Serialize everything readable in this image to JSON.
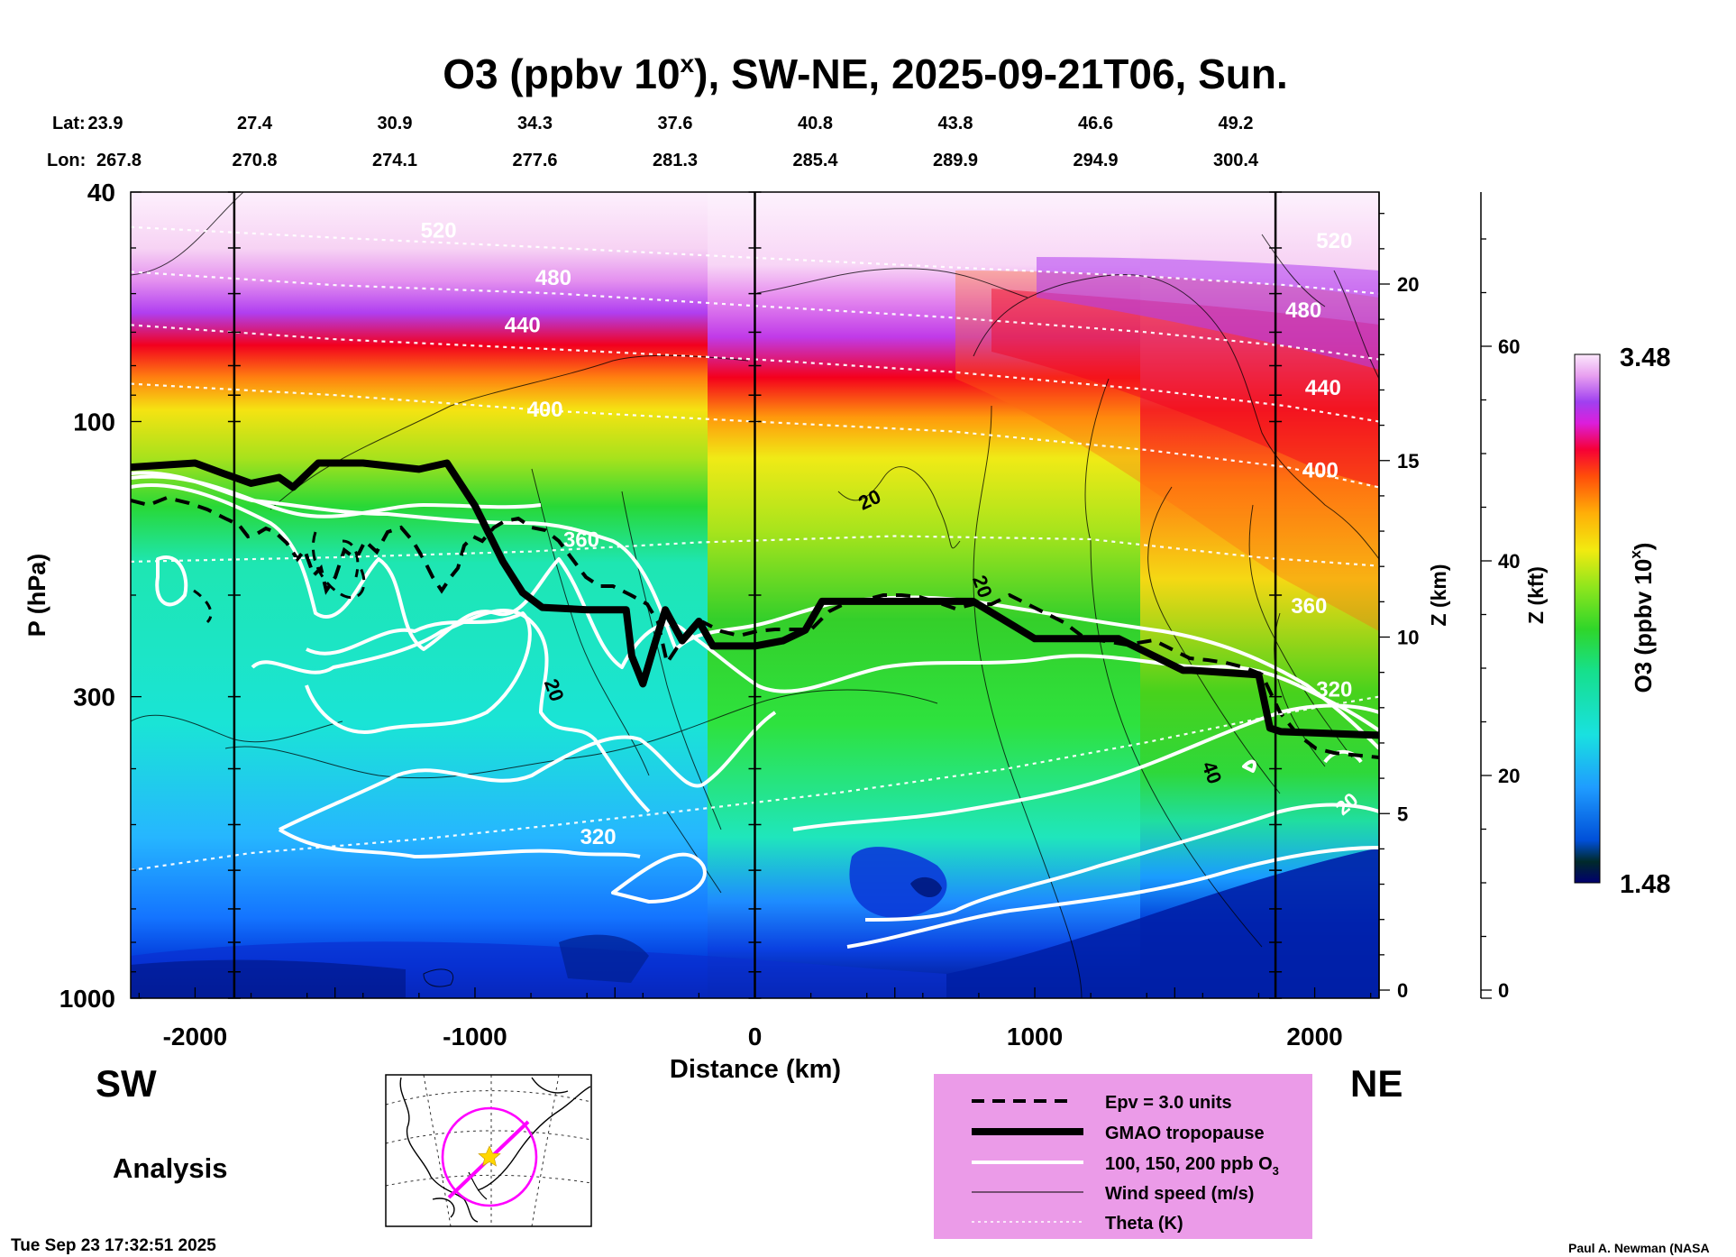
{
  "chart_data": {
    "type": "heatmap",
    "title": "O3 (ppbv 10",
    "title_sup": "x",
    "title_suffix": "), SW-NE, 2025-09-21T06, Sun.",
    "lat_label": "Lat:",
    "lon_label": "Lon:",
    "stations": [
      {
        "lat": "23.9",
        "lon": "267.8"
      },
      {
        "lat": "27.4",
        "lon": "270.8"
      },
      {
        "lat": "30.9",
        "lon": "274.1"
      },
      {
        "lat": "34.3",
        "lon": "277.6"
      },
      {
        "lat": "37.6",
        "lon": "281.3"
      },
      {
        "lat": "40.8",
        "lon": "285.4"
      },
      {
        "lat": "43.8",
        "lon": "289.9"
      },
      {
        "lat": "46.6",
        "lon": "294.9"
      },
      {
        "lat": "49.2",
        "lon": "300.4"
      }
    ],
    "xlabel": "Distance (km)",
    "xlim": [
      -2230,
      2230
    ],
    "xticks": [
      -2000,
      -1000,
      0,
      1000,
      2000
    ],
    "vlines_km": [
      -1860,
      0,
      1860
    ],
    "ylabel": "P (hPa)",
    "ylim_hpa": [
      1000,
      40
    ],
    "yticks_hpa": [
      40,
      100,
      300,
      1000
    ],
    "z_km_label": "Z (km)",
    "z_km_ticks": [
      0,
      5,
      10,
      15,
      20
    ],
    "z_kft_label": "Z (kft)",
    "z_kft_ticks": [
      0,
      20,
      40,
      60
    ],
    "colorbar": {
      "label": "O3 (ppbv 10",
      "label_sup": "x",
      "label_suffix": ")",
      "min": 1.48,
      "max": 3.48,
      "min_label": "1.48",
      "max_label": "3.48"
    },
    "tropopause_hpa": {
      "x_km": [
        -2230,
        -2000,
        -1900,
        -1800,
        -1700,
        -1650,
        -1560,
        -1520,
        -1400,
        -1200,
        -1100,
        -1000,
        -900,
        -830,
        -760,
        -600,
        -460,
        -440,
        -400,
        -360,
        -320,
        -260,
        -200,
        -150,
        0,
        100,
        180,
        240,
        500,
        780,
        950,
        1000,
        1300,
        1530,
        1560,
        1800,
        1840,
        1880,
        2230
      ],
      "p": [
        120,
        118,
        123,
        128,
        125,
        130,
        118,
        118,
        118,
        121,
        118,
        140,
        175,
        198,
        210,
        212,
        212,
        255,
        285,
        245,
        212,
        240,
        222,
        245,
        245,
        240,
        230,
        205,
        205,
        205,
        230,
        238,
        238,
        270,
        270,
        275,
        340,
        345,
        350
      ]
    },
    "theta_K": [
      {
        "K": 320,
        "x_km": [
          -2230,
          -1800,
          -1200,
          -700,
          -200,
          300,
          900,
          1400,
          1900,
          2230
        ],
        "p": [
          600,
          560,
          530,
          500,
          470,
          440,
          400,
          360,
          320,
          300
        ]
      },
      {
        "K": 360,
        "x_km": [
          -2230,
          -1500,
          -800,
          -200,
          500,
          1200,
          1800,
          2230
        ],
        "p": [
          175,
          172,
          168,
          162,
          158,
          160,
          172,
          178
        ]
      },
      {
        "K": 400,
        "x_km": [
          -2230,
          -1500,
          -700,
          0,
          700,
          1400,
          1900,
          2230
        ],
        "p": [
          86,
          90,
          96,
          100,
          104,
          112,
          120,
          130
        ]
      },
      {
        "K": 440,
        "x_km": [
          -2230,
          -1500,
          -700,
          0,
          700,
          1400,
          1900,
          2230
        ],
        "p": [
          68,
          72,
          75,
          78,
          82,
          88,
          94,
          100
        ]
      },
      {
        "K": 480,
        "x_km": [
          -2230,
          -1500,
          -700,
          0,
          700,
          1400,
          1900,
          2230
        ],
        "p": [
          55,
          58,
          60,
          63,
          66,
          70,
          74,
          78
        ]
      },
      {
        "K": 520,
        "x_km": [
          -2230,
          -1500,
          -700,
          0,
          700,
          1400,
          1900,
          2230
        ],
        "p": [
          46,
          48,
          50,
          52,
          54,
          56,
          58,
          60
        ]
      }
    ],
    "theta_labels": [
      {
        "text": "520",
        "x_km": -1130,
        "p": 48
      },
      {
        "text": "480",
        "x_km": -720,
        "p": 58
      },
      {
        "text": "440",
        "x_km": -830,
        "p": 70
      },
      {
        "text": "400",
        "x_km": -750,
        "p": 98
      },
      {
        "text": "360",
        "x_km": -620,
        "p": 165
      },
      {
        "text": "320",
        "x_km": -560,
        "p": 540
      },
      {
        "text": "520",
        "x_km": 2070,
        "p": 50
      },
      {
        "text": "480",
        "x_km": 1960,
        "p": 66
      },
      {
        "text": "440",
        "x_km": 2030,
        "p": 90
      },
      {
        "text": "400",
        "x_km": 2020,
        "p": 125
      },
      {
        "text": "360",
        "x_km": 1980,
        "p": 215
      },
      {
        "text": "320",
        "x_km": 2070,
        "p": 300
      }
    ],
    "wind_labels": [
      {
        "text": "20",
        "x_km": 420,
        "p": 140
      },
      {
        "text": "20",
        "x_km": 790,
        "p": 195
      },
      {
        "text": "20",
        "x_km": -740,
        "p": 295
      },
      {
        "text": "40",
        "x_km": 1610,
        "p": 410
      },
      {
        "text": "20",
        "x_km": 2130,
        "p": 470
      }
    ],
    "legend": {
      "entries": [
        "Epv = 3.0 units",
        "GMAO tropopause",
        "100, 150, 200 ppb O",
        "Wind speed (m/s)",
        "Theta (K)"
      ],
      "o3_sub": "3"
    }
  },
  "side_labels": {
    "sw": "SW",
    "ne": "NE",
    "analysis": "Analysis"
  },
  "footer": {
    "timestamp": "Tue Sep 23 17:32:51 2025",
    "credit": "Paul A. Newman (NASA"
  },
  "colors": {
    "tropopause": "#000000",
    "o3_contour": "#ffffff",
    "legend_bg": "#eb9be8",
    "map_track": "#ff00ff",
    "map_star": "#ffd700"
  }
}
